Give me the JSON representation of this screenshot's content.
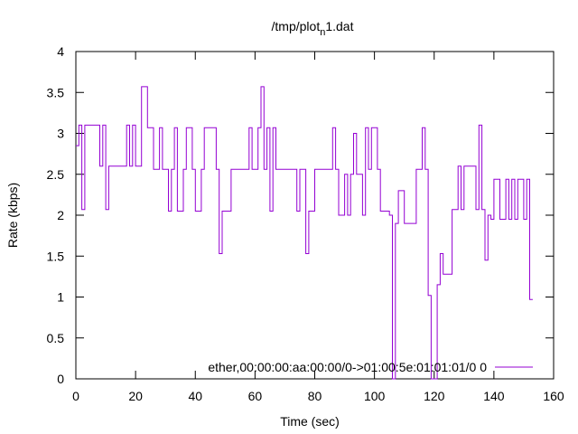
{
  "chart_data": {
    "type": "line",
    "step": true,
    "title_main": "/tmp/plot",
    "title_sub": "n",
    "title_tail": "1.dat",
    "xlabel": "Time (sec)",
    "ylabel": "Rate (kbps)",
    "xlim": [
      0,
      160
    ],
    "ylim": [
      0,
      4
    ],
    "xticks": [
      0,
      20,
      40,
      60,
      80,
      100,
      120,
      140,
      160
    ],
    "yticks": [
      0,
      0.5,
      1,
      1.5,
      2,
      2.5,
      3,
      3.5,
      4
    ],
    "grid": false,
    "legend_position": "bottom-right",
    "series": [
      {
        "name": "ether,00:00:00:aa:00:00/0->01:00:5e:01:01:01/0 0",
        "color": "#9400d3",
        "x": [
          0,
          1,
          2,
          3,
          8,
          9,
          10,
          11,
          17,
          18,
          19,
          20,
          22,
          24,
          26,
          28,
          29,
          31,
          32,
          33,
          34,
          36,
          37,
          39,
          40,
          42,
          43,
          47,
          48,
          49,
          52,
          58,
          59,
          61,
          62,
          63,
          64,
          65,
          66,
          67,
          69,
          74,
          75,
          77,
          78,
          80,
          82,
          86,
          87,
          88,
          90,
          91,
          92,
          93,
          94,
          96,
          97,
          98,
          99,
          101,
          102,
          103,
          105,
          106,
          107,
          108,
          110,
          114,
          116,
          117,
          118,
          119,
          121,
          122,
          123,
          126,
          128,
          129,
          130,
          134,
          135,
          136,
          137,
          138,
          139,
          140,
          142,
          144,
          145,
          146,
          147,
          148,
          150,
          151,
          152,
          153
        ],
        "y": [
          2.85,
          3.1,
          2.07,
          3.1,
          2.6,
          3.1,
          2.07,
          2.6,
          3.1,
          2.6,
          3.1,
          2.6,
          3.57,
          3.07,
          2.56,
          3.07,
          2.56,
          2.05,
          2.56,
          3.07,
          2.05,
          2.56,
          3.07,
          2.56,
          2.05,
          2.56,
          3.07,
          2.56,
          1.53,
          2.05,
          2.56,
          3.07,
          2.56,
          3.07,
          3.57,
          2.56,
          3.07,
          2.05,
          3.07,
          2.56,
          2.56,
          2.05,
          2.56,
          1.53,
          2.05,
          2.56,
          2.56,
          3.07,
          2.56,
          2.0,
          2.5,
          2.0,
          2.5,
          3.0,
          2.5,
          2.0,
          3.07,
          2.56,
          3.07,
          2.56,
          2.05,
          2.05,
          2.0,
          0.0,
          1.9,
          2.3,
          1.9,
          2.56,
          3.07,
          2.56,
          1.02,
          0.0,
          1.15,
          1.53,
          1.28,
          2.07,
          2.6,
          2.07,
          2.6,
          2.07,
          3.1,
          2.07,
          1.45,
          2.0,
          1.95,
          2.44,
          1.95,
          2.44,
          1.95,
          2.44,
          1.95,
          2.44,
          1.95,
          2.44,
          0.97,
          0.97
        ]
      }
    ]
  }
}
